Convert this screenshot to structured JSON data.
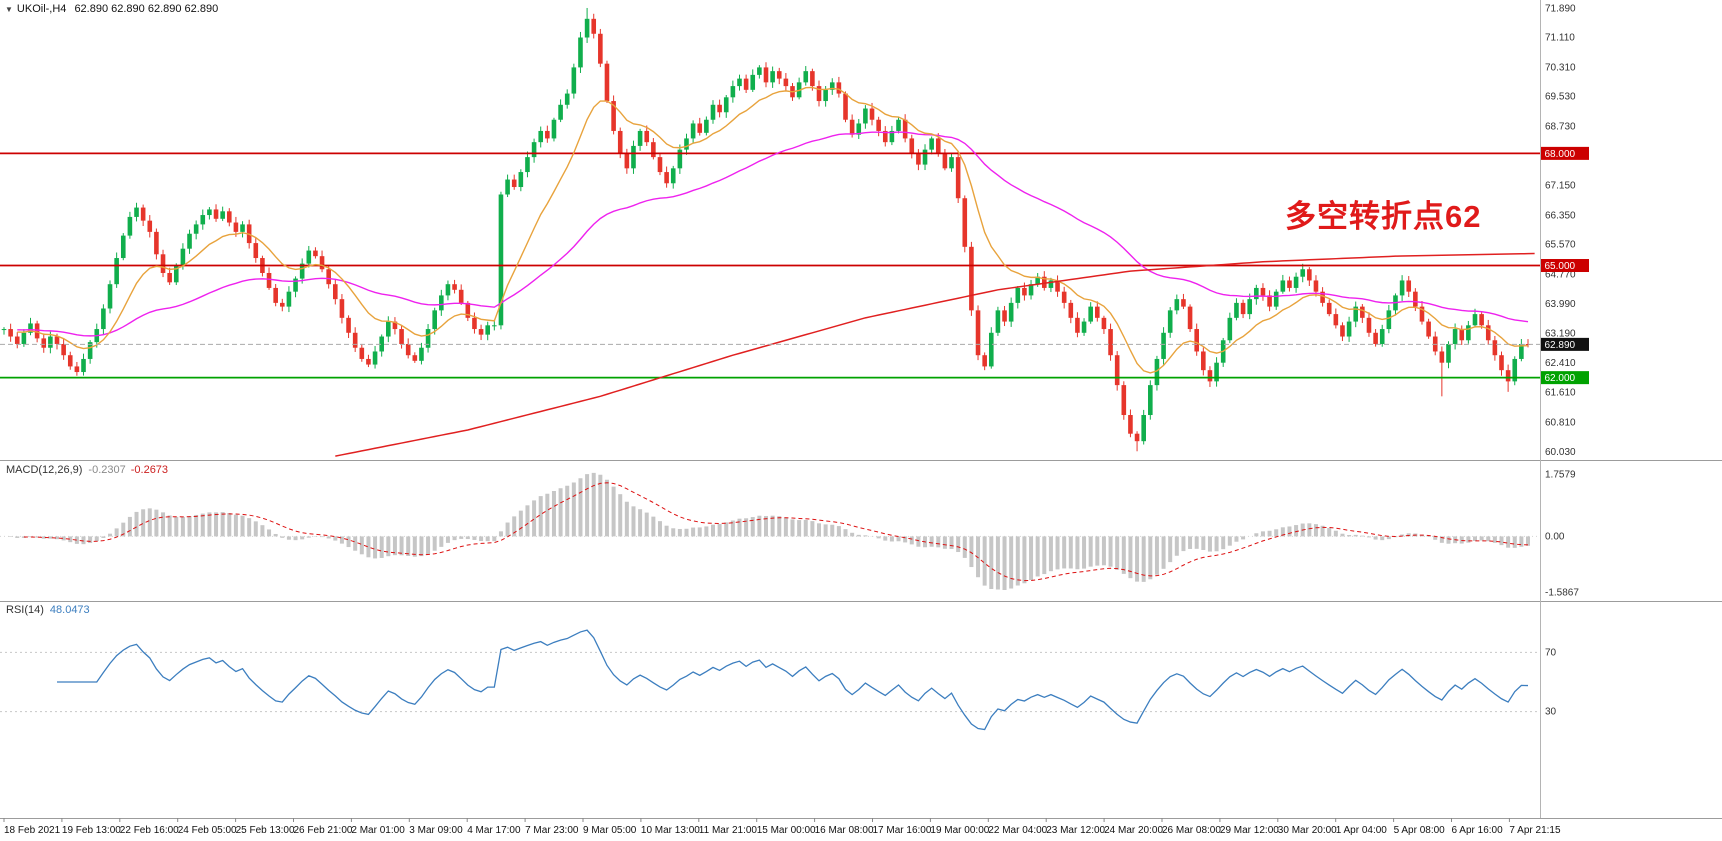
{
  "header": {
    "dropdown_arrow": "▼",
    "symbol_timeframe": "UKOil-,H4",
    "ohlc": "62.890 62.890 62.890 62.890"
  },
  "annotation": {
    "text": "多空转折点62",
    "color": "#e01a1a"
  },
  "chart_data": {
    "type": "candlestick",
    "symbol": "UKOil-",
    "timeframe": "H4",
    "title": "UKOil-,H4 62.890 62.890 62.890 62.890",
    "x_labels": [
      "18 Feb 2021",
      "19 Feb 13:00",
      "22 Feb 16:00",
      "24 Feb 05:00",
      "25 Feb 13:00",
      "26 Feb 21:00",
      "2 Mar 01:00",
      "3 Mar 09:00",
      "4 Mar 17:00",
      "7 Mar 23:00",
      "9 Mar 05:00",
      "10 Mar 13:00",
      "11 Mar 21:00",
      "15 Mar 00:00",
      "16 Mar 08:00",
      "17 Mar 16:00",
      "19 Mar 00:00",
      "22 Mar 04:00",
      "23 Mar 12:00",
      "24 Mar 20:00",
      "26 Mar 08:00",
      "29 Mar 12:00",
      "30 Mar 20:00",
      "1 Apr 04:00",
      "5 Apr 08:00",
      "6 Apr 16:00",
      "7 Apr 21:15"
    ],
    "y_ticks": [
      "71.890",
      "71.110",
      "70.310",
      "69.530",
      "68.730",
      "67.150",
      "66.350",
      "65.570",
      "64.770",
      "63.990",
      "63.190",
      "62.410",
      "61.610",
      "60.810",
      "60.030"
    ],
    "price_range": [
      59.85,
      72.05
    ],
    "candle_colors": {
      "up": "#10ae4c",
      "down": "#e6352b"
    },
    "closes": [
      63.3,
      63.1,
      62.9,
      63.2,
      63.45,
      63.05,
      62.8,
      63.1,
      62.9,
      62.6,
      62.3,
      62.15,
      62.5,
      62.95,
      63.3,
      63.85,
      64.5,
      65.2,
      65.8,
      66.3,
      66.55,
      66.2,
      65.9,
      65.3,
      64.8,
      64.55,
      65.0,
      65.45,
      65.85,
      66.1,
      66.35,
      66.5,
      66.25,
      66.45,
      66.15,
      65.9,
      66.1,
      65.6,
      65.2,
      64.8,
      64.4,
      64.0,
      63.9,
      64.3,
      64.65,
      65.05,
      65.4,
      65.25,
      64.9,
      64.5,
      64.1,
      63.6,
      63.2,
      62.8,
      62.5,
      62.35,
      62.7,
      63.1,
      63.5,
      63.3,
      62.9,
      62.6,
      62.45,
      62.8,
      63.3,
      63.8,
      64.2,
      64.5,
      64.35,
      64.0,
      63.6,
      63.3,
      63.15,
      63.4,
      63.4,
      66.9,
      67.3,
      67.1,
      67.5,
      67.9,
      68.3,
      68.6,
      68.4,
      68.9,
      69.3,
      69.6,
      70.3,
      71.1,
      71.6,
      71.2,
      70.4,
      69.4,
      68.6,
      68.0,
      67.6,
      68.2,
      68.6,
      68.3,
      67.9,
      67.5,
      67.2,
      67.6,
      68.1,
      68.4,
      68.8,
      68.55,
      68.9,
      69.3,
      69.1,
      69.5,
      69.8,
      70.0,
      69.7,
      70.1,
      70.3,
      69.9,
      70.2,
      70.0,
      69.8,
      69.5,
      69.9,
      70.2,
      69.8,
      69.4,
      69.7,
      69.9,
      69.6,
      68.9,
      68.5,
      68.8,
      69.2,
      68.9,
      68.6,
      68.3,
      68.6,
      68.9,
      68.4,
      68.0,
      67.7,
      68.1,
      68.4,
      68.0,
      67.6,
      67.9,
      66.8,
      65.5,
      63.8,
      62.6,
      62.3,
      63.2,
      63.8,
      63.5,
      64.0,
      64.4,
      64.2,
      64.5,
      64.7,
      64.4,
      64.6,
      64.3,
      64.0,
      63.6,
      63.2,
      63.5,
      63.9,
      63.6,
      63.3,
      62.6,
      61.8,
      61.0,
      60.5,
      60.3,
      61.0,
      61.8,
      62.5,
      63.2,
      63.8,
      64.1,
      63.9,
      63.3,
      62.7,
      62.2,
      61.9,
      62.4,
      63.0,
      63.6,
      64.0,
      63.7,
      64.1,
      64.4,
      64.2,
      63.9,
      64.3,
      64.6,
      64.4,
      64.7,
      64.9,
      64.6,
      64.3,
      64.0,
      63.7,
      63.4,
      63.1,
      63.5,
      63.9,
      63.6,
      63.2,
      62.9,
      63.3,
      63.8,
      64.2,
      64.6,
      64.3,
      63.9,
      63.5,
      63.1,
      62.7,
      62.4,
      62.9,
      63.3,
      63.0,
      63.4,
      63.7,
      63.4,
      63.0,
      62.6,
      62.2,
      61.9,
      62.5,
      62.9,
      62.89
    ],
    "high_overrides": {
      "88": 71.89
    },
    "low_overrides": {
      "11": 62.05,
      "171": 60.03,
      "217": 61.5,
      "227": 61.62
    },
    "hlines": [
      {
        "price": 68.0,
        "label": "68.000",
        "color": "#cc0000"
      },
      {
        "price": 65.0,
        "label": "65.000",
        "color": "#cc0000"
      },
      {
        "price": 62.0,
        "label": "62.000",
        "color": "#00a200"
      }
    ],
    "current_price": {
      "value": 62.89,
      "label": "62.890",
      "badge_color": "#111111",
      "line_color": "#aaaaaa"
    },
    "moving_averages": {
      "fast_period": 13,
      "fast_color": "#e8a33d",
      "mid_period": 55,
      "mid_color": "#ee22ee",
      "slow_color": "#e02020",
      "slow_keypoints": [
        [
          50,
          59.9
        ],
        [
          70,
          60.6
        ],
        [
          90,
          61.5
        ],
        [
          110,
          62.6
        ],
        [
          130,
          63.6
        ],
        [
          150,
          64.35
        ],
        [
          170,
          64.85
        ],
        [
          190,
          65.1
        ],
        [
          210,
          65.25
        ],
        [
          231,
          65.32
        ]
      ]
    },
    "macd": {
      "label": "MACD(12,26,9)",
      "value_main": "-0.2307",
      "value_signal": "-0.2673",
      "fast": 12,
      "slow": 26,
      "signal": 9,
      "axis_max_label": "1.7579",
      "axis_zero_label": "0.00",
      "axis_min_label": "-1.5867",
      "range": [
        -1.75,
        2.0
      ],
      "hist_color": "#c6c6c6",
      "signal_color": "#dd1111"
    },
    "rsi": {
      "label": "RSI(14)",
      "value": "48.0473",
      "period": 14,
      "levels": [
        70,
        30
      ],
      "color": "#3c7ebf",
      "range": [
        0,
        100
      ]
    }
  }
}
